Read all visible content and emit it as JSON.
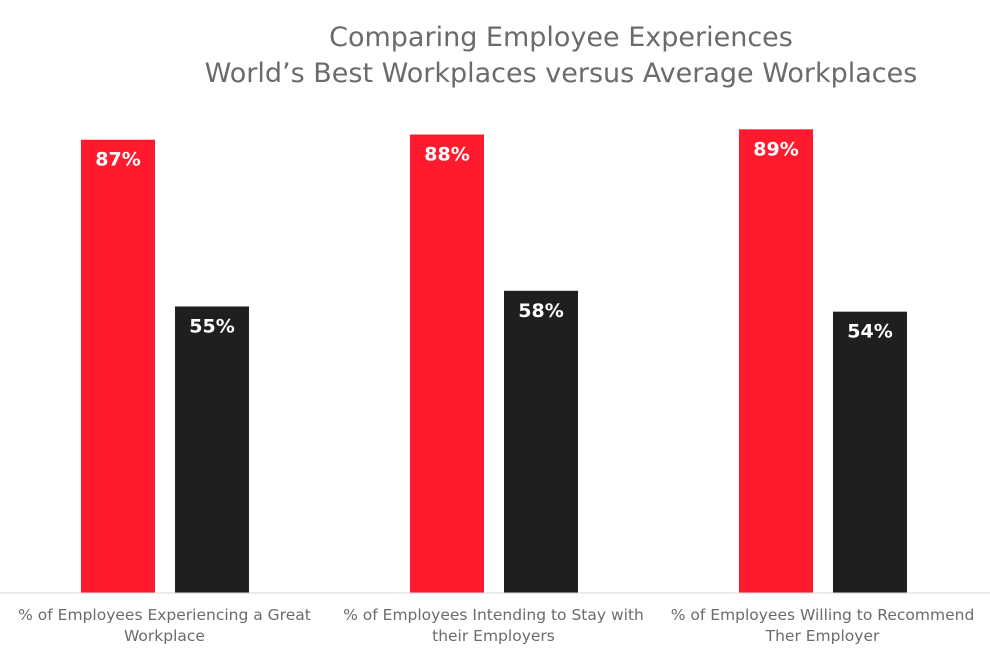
{
  "chart_data": {
    "type": "bar",
    "title": "Comparing Employee Experiences",
    "subtitle": "World’s Best Workplaces versus Average Workplaces",
    "categories": [
      [
        "% of Employees Experiencing a Great",
        "Workplace"
      ],
      [
        "% of Employees Intending to Stay with",
        "their Employers"
      ],
      [
        "% of Employees Willing to Recommend",
        "Ther Employer"
      ]
    ],
    "series": [
      {
        "values": [
          87,
          88,
          89
        ],
        "color": "#ff1a2d"
      },
      {
        "values": [
          55,
          58,
          54
        ],
        "color": "#1f1f21"
      }
    ],
    "value_suffix": "%",
    "ylim": [
      0,
      100
    ],
    "grid": false,
    "legend": "none",
    "axis_color": "#d9d9d9"
  }
}
